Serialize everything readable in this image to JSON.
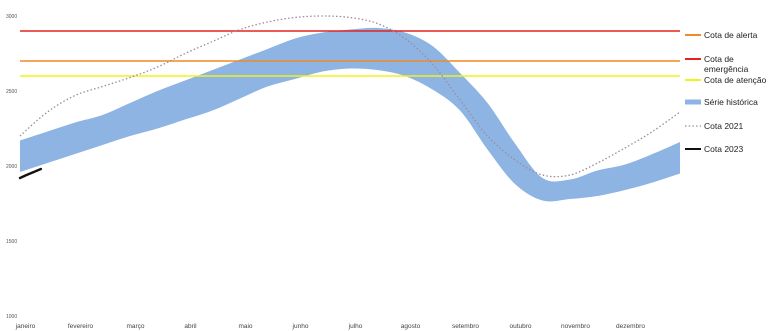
{
  "chart_data": {
    "type": "line",
    "title": "",
    "xlabel": "",
    "ylabel": "",
    "ylim": [
      1000,
      3000
    ],
    "xlim": [
      0,
      12
    ],
    "y_ticks": [
      {
        "value": 1000,
        "label": "1000"
      },
      {
        "value": 1500,
        "label": "1500"
      },
      {
        "value": 2000,
        "label": "2000"
      },
      {
        "value": 2500,
        "label": "2500"
      },
      {
        "value": 3000,
        "label": "3000"
      }
    ],
    "months": [
      "janeiro",
      "fevereiro",
      "março",
      "abril",
      "maio",
      "junho",
      "julho",
      "agosto",
      "setembro",
      "outubro",
      "novembro",
      "dezembro"
    ],
    "grid": false,
    "legend_position": "right",
    "thresholds": [
      {
        "name": "Cota de alerta",
        "value": 2700,
        "color": "#f08a24"
      },
      {
        "name": "Cota de emergência",
        "value": 2900,
        "color": "#e52421"
      },
      {
        "name": "Cota de atenção",
        "value": 2600,
        "color": "#f2f21a"
      }
    ],
    "band": {
      "name": "Série histórica",
      "color": "#8db4e2",
      "x": [
        0.0,
        0.5,
        1.0,
        1.5,
        2.0,
        2.5,
        3.0,
        3.5,
        4.0,
        4.5,
        5.0,
        5.5,
        6.0,
        6.5,
        7.0,
        7.5,
        8.0,
        8.5,
        9.0,
        9.5,
        10.0,
        10.5,
        11.0,
        11.5,
        12.0
      ],
      "upper": [
        2170,
        2230,
        2290,
        2340,
        2420,
        2500,
        2570,
        2640,
        2710,
        2780,
        2850,
        2890,
        2910,
        2920,
        2890,
        2800,
        2620,
        2420,
        2150,
        1920,
        1910,
        1970,
        2010,
        2080,
        2160
      ],
      "lower": [
        1960,
        2020,
        2080,
        2140,
        2200,
        2250,
        2310,
        2370,
        2450,
        2530,
        2580,
        2630,
        2650,
        2640,
        2600,
        2510,
        2370,
        2110,
        1880,
        1770,
        1780,
        1800,
        1840,
        1890,
        1950
      ]
    },
    "series": [
      {
        "name": "Cota 2021",
        "color": "#9e8a9e",
        "style": "dotted",
        "x": [
          0.0,
          0.5,
          1.0,
          1.5,
          2.0,
          2.5,
          3.0,
          3.5,
          4.0,
          4.5,
          5.0,
          5.5,
          6.0,
          6.5,
          7.0,
          7.5,
          8.0,
          8.5,
          9.0,
          9.5,
          10.0,
          10.5,
          11.0,
          11.5,
          12.0
        ],
        "values": [
          2200,
          2360,
          2470,
          2530,
          2590,
          2660,
          2750,
          2830,
          2910,
          2960,
          2990,
          3000,
          2990,
          2950,
          2850,
          2680,
          2440,
          2200,
          2040,
          1940,
          1940,
          2020,
          2120,
          2230,
          2360
        ]
      },
      {
        "name": "Cota 2023",
        "color": "#111111",
        "style": "solid",
        "x": [
          0.0,
          0.12,
          0.25,
          0.38
        ],
        "values": [
          1920,
          1940,
          1960,
          1980
        ]
      }
    ],
    "legend": [
      {
        "label": "Cota de alerta",
        "color": "#f08a24",
        "style": "solid"
      },
      {
        "label": "Cota de emergência",
        "color": "#e52421",
        "style": "solid"
      },
      {
        "label": "Cota de atenção",
        "color": "#f2f21a",
        "style": "solid"
      },
      {
        "label": "Série histórica",
        "color": "#8db4e2",
        "style": "solid"
      },
      {
        "label": "Cota 2021",
        "color": "#9e8a9e",
        "style": "dotted"
      },
      {
        "label": "Cota 2023",
        "color": "#111111",
        "style": "solid"
      }
    ]
  }
}
